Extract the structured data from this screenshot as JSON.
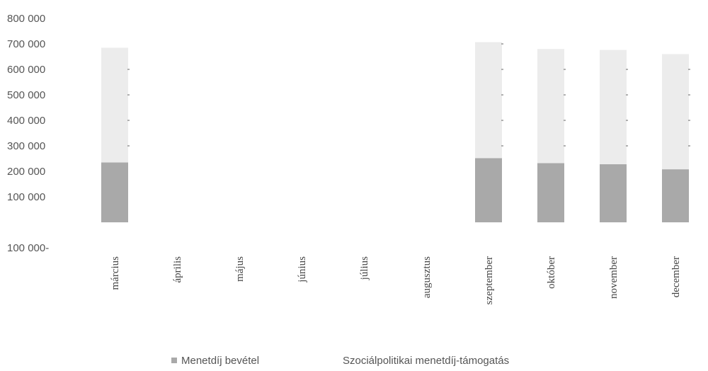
{
  "chart_data": {
    "type": "bar",
    "stacked": true,
    "categories": [
      "március",
      "április",
      "május",
      "június",
      "július",
      "augusztus",
      "szeptember",
      "október",
      "november",
      "december"
    ],
    "series": [
      {
        "name": "Menetdíj bevétel",
        "color": "#a9a9a9",
        "values": [
          235000,
          null,
          null,
          null,
          null,
          null,
          252000,
          232000,
          228000,
          208000
        ]
      },
      {
        "name": "Szociálpolitikai menetdíj-támogatás",
        "color": "#ececec",
        "values": [
          450000,
          null,
          null,
          null,
          null,
          null,
          455000,
          448000,
          448000,
          452000
        ]
      }
    ],
    "yticks": [
      "800 000",
      "700 000",
      "600 000",
      "500 000",
      "400 000",
      "300 000",
      "200 000",
      "100 000",
      "",
      "100 000-"
    ],
    "ylim": [
      -100000,
      800000
    ],
    "grid": false,
    "legend": "bottom",
    "xlabel": "",
    "ylabel": ""
  }
}
